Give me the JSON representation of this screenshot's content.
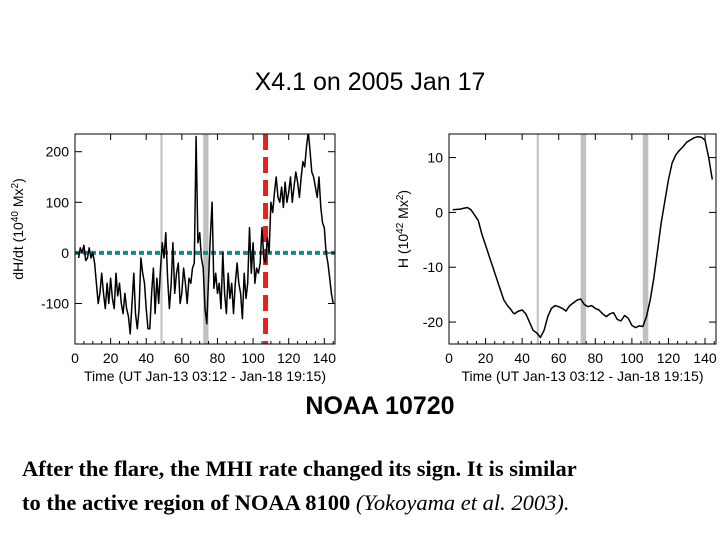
{
  "title": "X4.1 on 2005 Jan 17",
  "subtitle": "NOAA 10720",
  "caption": {
    "line1": "After the flare, the MHI rate changed its sign. It is similar",
    "line2_main": "to  the  active region of NOAA 8100 ",
    "line2_ref": "(Yokoyama et al. 2003)."
  },
  "colors": {
    "line": "#000000",
    "band": "#c0c0c0",
    "zero_line": "#1a8a85",
    "flare": "#e8201e"
  },
  "chart_data": [
    {
      "type": "line",
      "xlabel": "Time (UT Jan-13 03:12 - Jan-18 19:15)",
      "ylabel": "dH/dt (10",
      "ylabel_exp": "40",
      "ylabel_tail": " Mx",
      "ylabel_exp2": "2",
      "ylabel_close": ")",
      "xlim": [
        0,
        146
      ],
      "ylim": [
        -180,
        235
      ],
      "xticks": [
        0,
        20,
        40,
        60,
        80,
        100,
        120,
        140
      ],
      "yticks": [
        -100,
        0,
        100,
        200
      ],
      "bands": [
        [
          48,
          49
        ],
        [
          72,
          75
        ]
      ],
      "zero_line": 0,
      "flare_time": 107,
      "series": [
        {
          "name": "dH/dt",
          "x": [
            2,
            3,
            4,
            5,
            6,
            7,
            8,
            9,
            10,
            11,
            12,
            13,
            14,
            15,
            16,
            17,
            18,
            19,
            20,
            21,
            22,
            23,
            24,
            25,
            26,
            27,
            28,
            29,
            30,
            31,
            32,
            33,
            34,
            35,
            36,
            37,
            38,
            39,
            40,
            41,
            42,
            43,
            44,
            45,
            46,
            47,
            48,
            49,
            50,
            51,
            52,
            53,
            54,
            55,
            56,
            57,
            58,
            59,
            60,
            61,
            62,
            63,
            64,
            65,
            66,
            67,
            68,
            69,
            70,
            71,
            72,
            73,
            74,
            75,
            76,
            77,
            78,
            79,
            80,
            81,
            82,
            83,
            84,
            85,
            86,
            87,
            88,
            89,
            90,
            91,
            92,
            93,
            94,
            95,
            96,
            97,
            98,
            99,
            100,
            101,
            102,
            103,
            104,
            105,
            106,
            107,
            108,
            109,
            110,
            111,
            112,
            113,
            114,
            115,
            116,
            117,
            118,
            119,
            120,
            121,
            122,
            123,
            124,
            125,
            126,
            127,
            128,
            129,
            130,
            131,
            132,
            133,
            134,
            135,
            136,
            137,
            138,
            139,
            140,
            141,
            142,
            143,
            144,
            145
          ],
          "y": [
            -10,
            10,
            0,
            15,
            -15,
            -10,
            10,
            -10,
            0,
            -20,
            -60,
            -100,
            -80,
            -40,
            -80,
            -110,
            -60,
            -100,
            -50,
            -90,
            -110,
            -40,
            -85,
            -60,
            -100,
            -120,
            -80,
            -110,
            -125,
            -160,
            -100,
            -40,
            -120,
            -150,
            -110,
            -10,
            -40,
            -60,
            -110,
            -150,
            -150,
            -80,
            -30,
            -120,
            -50,
            -100,
            -30,
            20,
            -10,
            40,
            -50,
            -110,
            -60,
            20,
            -80,
            -40,
            -20,
            -100,
            -80,
            -30,
            -60,
            -100,
            -50,
            -60,
            -30,
            -20,
            230,
            20,
            40,
            -10,
            -30,
            -110,
            -140,
            -50,
            30,
            100,
            -70,
            -40,
            -80,
            -60,
            -110,
            0,
            -80,
            -120,
            -40,
            -90,
            -60,
            -120,
            -60,
            -20,
            -60,
            -80,
            -130,
            -40,
            -90,
            -60,
            50,
            -40,
            20,
            -60,
            -30,
            -40,
            -20,
            50,
            -10,
            -20,
            30,
            0,
            100,
            80,
            120,
            150,
            110,
            100,
            130,
            90,
            140,
            100,
            120,
            150,
            100,
            130,
            160,
            140,
            110,
            150,
            180,
            170,
            210,
            240,
            200,
            160,
            150,
            130,
            110,
            150,
            90,
            60,
            50,
            0,
            -20,
            -50,
            -80,
            -100
          ]
        }
      ]
    },
    {
      "type": "line",
      "xlabel": "Time (UT Jan-13 03:12 - Jan-18 19:15)",
      "ylabel": "H (10",
      "ylabel_exp": "42",
      "ylabel_tail": " Mx",
      "ylabel_exp2": "2",
      "ylabel_close": ")",
      "xlim": [
        0,
        146
      ],
      "ylim": [
        -24,
        14.3
      ],
      "xticks": [
        0,
        20,
        40,
        60,
        80,
        100,
        120,
        140
      ],
      "yticks": [
        -20,
        -10,
        0,
        10
      ],
      "bands": [
        [
          48,
          49
        ],
        [
          72,
          75
        ],
        [
          106,
          109
        ]
      ],
      "series": [
        {
          "name": "H",
          "x": [
            2,
            6,
            10,
            12,
            14,
            16,
            18,
            20,
            22,
            24,
            26,
            28,
            30,
            32,
            34,
            35,
            36,
            37,
            38,
            40,
            42,
            44,
            46,
            48,
            50,
            52,
            54,
            56,
            58,
            60,
            62,
            64,
            66,
            68,
            70,
            72,
            74,
            76,
            78,
            80,
            82,
            84,
            86,
            88,
            90,
            92,
            94,
            96,
            98,
            100,
            102,
            104,
            106,
            108,
            110,
            112,
            114,
            116,
            118,
            120,
            122,
            124,
            126,
            128,
            130,
            132,
            134,
            136,
            138,
            140,
            142,
            144
          ],
          "y": [
            0.5,
            0.6,
            0.9,
            0.5,
            -0.5,
            -1.5,
            -4,
            -6,
            -8,
            -10,
            -12,
            -14,
            -16,
            -17,
            -17.8,
            -18.3,
            -18.5,
            -18.2,
            -18,
            -17.8,
            -18.5,
            -20,
            -21.5,
            -22,
            -22.8,
            -21.5,
            -19,
            -17.5,
            -17,
            -17.2,
            -17.5,
            -18,
            -17,
            -16.5,
            -16,
            -15.8,
            -16.8,
            -17.2,
            -17,
            -17.5,
            -17.8,
            -18.5,
            -19,
            -18.5,
            -18.3,
            -19.5,
            -19.8,
            -18.8,
            -19.3,
            -20.6,
            -21,
            -20.7,
            -20.8,
            -19,
            -16,
            -12,
            -7,
            -2,
            2,
            6,
            9,
            10.5,
            11.3,
            12,
            12.8,
            13.2,
            13.6,
            13.8,
            13.7,
            13.2,
            10,
            6
          ]
        }
      ]
    }
  ]
}
